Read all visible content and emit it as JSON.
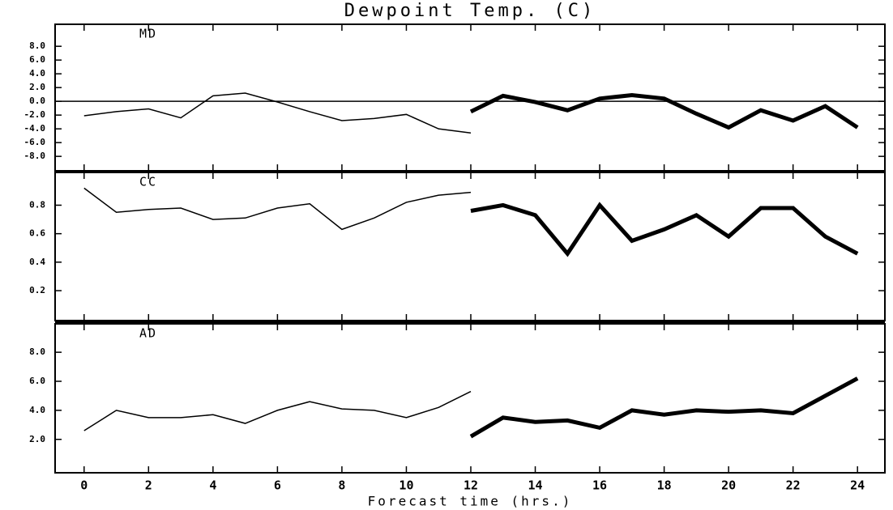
{
  "chart_data": [
    {
      "type": "line",
      "title": "Dewpoint Temp. (C)",
      "label": "MD",
      "x": [
        0,
        1,
        2,
        3,
        4,
        5,
        6,
        7,
        8,
        9,
        10,
        11,
        12,
        13,
        14,
        15,
        16,
        17,
        18,
        19,
        20,
        21,
        22,
        23,
        24
      ],
      "xlim": [
        -0.9,
        24.85
      ],
      "ylim": [
        -10.1,
        11.2
      ],
      "yticks": [
        {
          "value": 8,
          "label": "8.0"
        },
        {
          "value": 6,
          "label": "6.0"
        },
        {
          "value": 4,
          "label": "4.0"
        },
        {
          "value": 2,
          "label": "2.0"
        },
        {
          "value": 0,
          "label": "0.0"
        },
        {
          "value": -2,
          "label": "-2.0"
        },
        {
          "value": -4,
          "label": "-4.0"
        },
        {
          "value": -6,
          "label": "-6.0"
        },
        {
          "value": -8,
          "label": "-8.0"
        }
      ],
      "reference_line": 0,
      "series": [
        {
          "color": "#000000",
          "width": 1.5,
          "values": [
            -2.1,
            -1.5,
            -1.1,
            -2.4,
            0.8,
            1.2,
            -0.1,
            -1.5,
            -2.8,
            -2.5,
            -1.9,
            -4.0,
            -4.6,
            null,
            null,
            null,
            null,
            null,
            null,
            null,
            null,
            null,
            null,
            null,
            null
          ]
        },
        {
          "color": "#000000",
          "width": 5,
          "values": [
            null,
            null,
            null,
            null,
            null,
            null,
            null,
            null,
            null,
            null,
            null,
            null,
            -1.5,
            0.8,
            -0.1,
            -1.3,
            0.4,
            0.9,
            0.4,
            -1.8,
            -3.8,
            -1.3,
            -2.8,
            -0.7,
            -3.8
          ]
        }
      ]
    },
    {
      "type": "line",
      "label": "CC",
      "x": [
        0,
        1,
        2,
        3,
        4,
        5,
        6,
        7,
        8,
        9,
        10,
        11,
        12,
        13,
        14,
        15,
        16,
        17,
        18,
        19,
        20,
        21,
        22,
        23,
        24
      ],
      "xlim": [
        -0.9,
        24.85
      ],
      "ylim": [
        -0.01,
        1.03
      ],
      "yticks": [
        0.8,
        0.6,
        0.4,
        0.2
      ],
      "series": [
        {
          "color": "#000000",
          "width": 1.5,
          "values": [
            0.92,
            0.75,
            0.77,
            0.78,
            0.7,
            0.71,
            0.78,
            0.81,
            0.63,
            0.71,
            0.82,
            0.87,
            0.89,
            null,
            null,
            null,
            null,
            null,
            null,
            null,
            null,
            null,
            null,
            null,
            null
          ]
        },
        {
          "color": "#000000",
          "width": 5,
          "values": [
            null,
            null,
            null,
            null,
            null,
            null,
            null,
            null,
            null,
            null,
            null,
            null,
            0.76,
            0.8,
            0.73,
            0.46,
            0.8,
            0.55,
            0.63,
            0.73,
            0.58,
            0.78,
            0.78,
            0.58,
            0.46
          ]
        }
      ]
    },
    {
      "type": "line",
      "label": "AD",
      "xlabel": "Forecast time (hrs.)",
      "x": [
        0,
        1,
        2,
        3,
        4,
        5,
        6,
        7,
        8,
        9,
        10,
        11,
        12,
        13,
        14,
        15,
        16,
        17,
        18,
        19,
        20,
        21,
        22,
        23,
        24
      ],
      "xlim": [
        -0.9,
        24.85
      ],
      "ylim": [
        -0.3,
        9.96
      ],
      "xticks": [
        0,
        2,
        4,
        6,
        8,
        10,
        12,
        14,
        16,
        18,
        20,
        22,
        24
      ],
      "yticks": [
        {
          "value": 8,
          "label": "8.0"
        },
        {
          "value": 6,
          "label": "6.0"
        },
        {
          "value": 4,
          "label": "4.0"
        },
        {
          "value": 2,
          "label": "2.0"
        }
      ],
      "series": [
        {
          "color": "#000000",
          "width": 1.5,
          "values": [
            2.6,
            4.0,
            3.5,
            3.5,
            3.7,
            3.1,
            4.0,
            4.6,
            4.1,
            4.0,
            3.5,
            4.2,
            5.3,
            null,
            null,
            null,
            null,
            null,
            null,
            null,
            null,
            null,
            null,
            null,
            null
          ]
        },
        {
          "color": "#000000",
          "width": 5,
          "values": [
            null,
            null,
            null,
            null,
            null,
            null,
            null,
            null,
            null,
            null,
            null,
            null,
            2.2,
            3.5,
            3.2,
            3.3,
            2.8,
            4.0,
            3.7,
            4.0,
            3.9,
            4.0,
            3.8,
            5.0,
            6.2
          ]
        }
      ]
    }
  ]
}
